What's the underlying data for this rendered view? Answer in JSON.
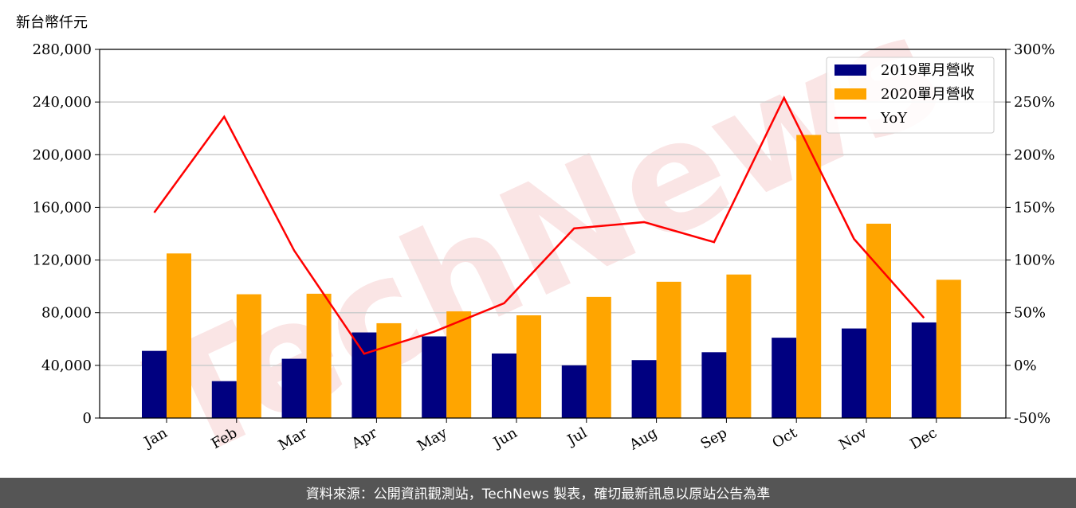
{
  "chart_data": {
    "type": "bar",
    "y_label": "新台幣仟元",
    "watermark": "TechNews",
    "footer": "資料來源：公開資訊觀測站，TechNews 製表，確切最新訊息以原站公告為準",
    "categories": [
      "Jan",
      "Feb",
      "Mar",
      "Apr",
      "May",
      "Jun",
      "Jul",
      "Aug",
      "Sep",
      "Oct",
      "Nov",
      "Dec"
    ],
    "series": [
      {
        "name": "2019單月營收",
        "type": "bar",
        "color": "#000080",
        "values": [
          51000,
          28000,
          45000,
          65000,
          62000,
          49000,
          40000,
          44000,
          50000,
          61000,
          68000,
          72600
        ]
      },
      {
        "name": "2020單月營收",
        "type": "bar",
        "color": "#ffa500",
        "values": [
          125000,
          94000,
          94400,
          72000,
          81000,
          78000,
          92000,
          103500,
          109000,
          215000,
          147600,
          105000
        ]
      },
      {
        "name": "YoY",
        "type": "line",
        "axis": "y2",
        "color": "#ff0000",
        "values": [
          145,
          236,
          109,
          11,
          32,
          59,
          130,
          136,
          117,
          254,
          120,
          45
        ]
      }
    ],
    "ylim": [
      0,
      280000
    ],
    "yticks": [
      0,
      {
        "value": 40000,
        "label": "40,000"
      },
      {
        "value": 80000,
        "label": "80,000"
      },
      {
        "value": 120000,
        "label": "120,000"
      },
      {
        "value": 160000,
        "label": "160,000"
      },
      {
        "value": 200000,
        "label": "200,000"
      },
      {
        "value": 240000,
        "label": "240,000"
      },
      {
        "value": 280000,
        "label": "280,000"
      }
    ],
    "y2lim": [
      -50,
      300
    ],
    "y2ticks": [
      {
        "value": -50,
        "label": "-50%"
      },
      {
        "value": 0,
        "label": "0%"
      },
      {
        "value": 50,
        "label": "50%"
      },
      {
        "value": 100,
        "label": "100%"
      },
      {
        "value": 150,
        "label": "150%"
      },
      {
        "value": 200,
        "label": "200%"
      },
      {
        "value": 250,
        "label": "250%"
      },
      {
        "value": 300,
        "label": "300%"
      }
    ],
    "grid": true,
    "legend": "upper right"
  }
}
